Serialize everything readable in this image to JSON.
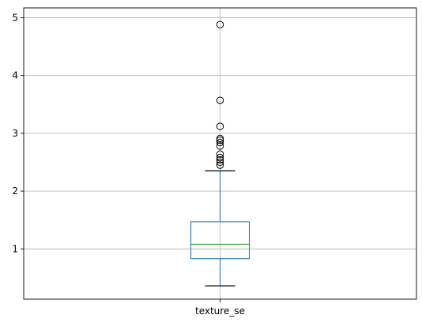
{
  "chart_data": {
    "type": "box",
    "title": "",
    "xlabel": "",
    "ylabel": "",
    "categories": [
      "texture_se"
    ],
    "ylim": [
      0.13,
      5.17
    ],
    "yticks": [
      1,
      2,
      3,
      4,
      5
    ],
    "grid": true,
    "boxes": [
      {
        "name": "texture_se",
        "whisker_low": 0.36,
        "q1": 0.83,
        "median": 1.08,
        "q3": 1.47,
        "whisker_high": 2.35,
        "outliers": [
          2.45,
          2.5,
          2.54,
          2.58,
          2.64,
          2.78,
          2.84,
          2.88,
          2.91,
          3.12,
          3.57,
          4.88
        ]
      }
    ],
    "colors": {
      "box": "#1f77b4",
      "median": "#2ca02c",
      "whisker": "#1f77b4",
      "cap": "#000000",
      "grid": "#b0b0b0",
      "axes": "#000000"
    }
  }
}
